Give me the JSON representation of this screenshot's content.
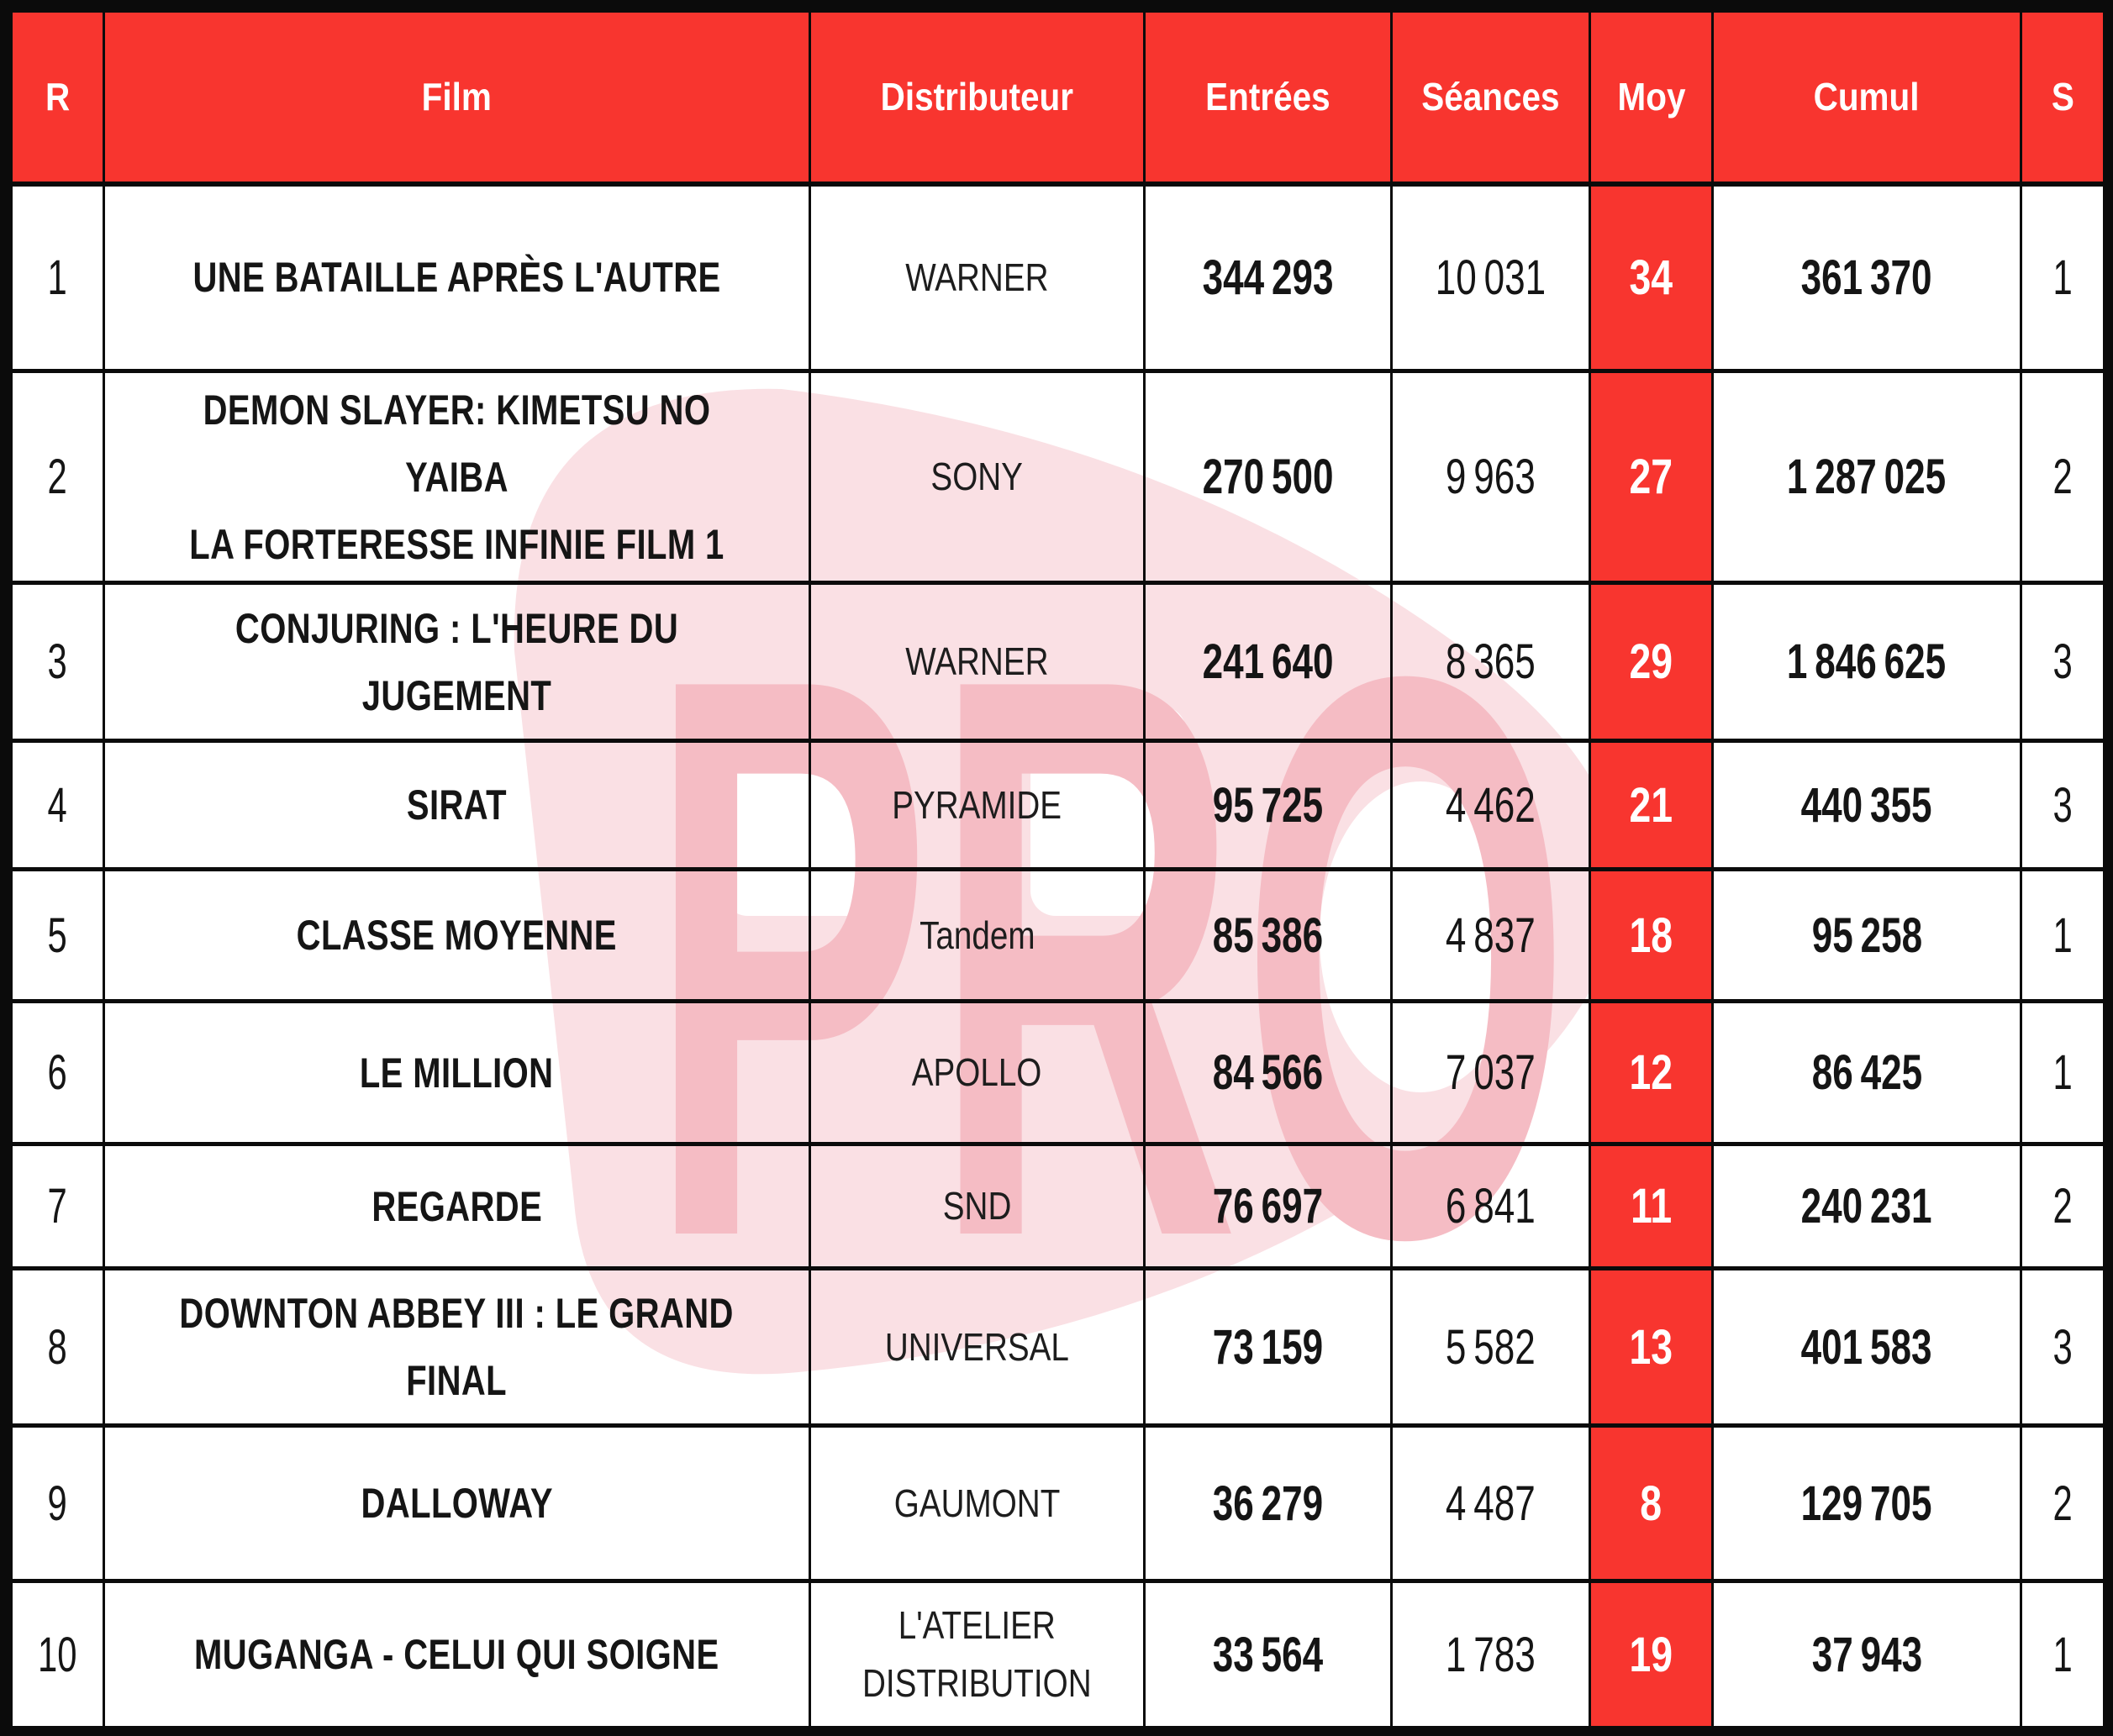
{
  "table": {
    "columns": [
      {
        "key": "rank",
        "label": "R"
      },
      {
        "key": "film",
        "label": "Film"
      },
      {
        "key": "distributor",
        "label": "Distributeur"
      },
      {
        "key": "entries",
        "label": "Entrées"
      },
      {
        "key": "screenings",
        "label": "Séances"
      },
      {
        "key": "average",
        "label": "Moy"
      },
      {
        "key": "cumulative",
        "label": "Cumul"
      },
      {
        "key": "weeks",
        "label": "S"
      }
    ],
    "rows": [
      {
        "rank": "1",
        "film": "UNE BATAILLE APRÈS L'AUTRE",
        "distributor": "WARNER",
        "entries": "344 293",
        "screenings": "10 031",
        "average": "34",
        "cumulative": "361 370",
        "weeks": "1"
      },
      {
        "rank": "2",
        "film": "DEMON SLAYER: KIMETSU NO YAIBA\nLA FORTERESSE INFINIE FILM 1",
        "distributor": "SONY",
        "entries": "270 500",
        "screenings": "9 963",
        "average": "27",
        "cumulative": "1 287 025",
        "weeks": "2"
      },
      {
        "rank": "3",
        "film": "CONJURING : L'HEURE DU\nJUGEMENT",
        "distributor": "WARNER",
        "entries": "241 640",
        "screenings": "8 365",
        "average": "29",
        "cumulative": "1 846 625",
        "weeks": "3"
      },
      {
        "rank": "4",
        "film": "SIRAT",
        "distributor": "PYRAMIDE",
        "entries": "95 725",
        "screenings": "4 462",
        "average": "21",
        "cumulative": "440 355",
        "weeks": "3"
      },
      {
        "rank": "5",
        "film": "CLASSE MOYENNE",
        "distributor": "Tandem",
        "entries": "85 386",
        "screenings": "4 837",
        "average": "18",
        "cumulative": "95 258",
        "weeks": "1"
      },
      {
        "rank": "6",
        "film": "LE MILLION",
        "distributor": "APOLLO",
        "entries": "84 566",
        "screenings": "7 037",
        "average": "12",
        "cumulative": "86 425",
        "weeks": "1"
      },
      {
        "rank": "7",
        "film": "REGARDE",
        "distributor": "SND",
        "entries": "76 697",
        "screenings": "6 841",
        "average": "11",
        "cumulative": "240 231",
        "weeks": "2"
      },
      {
        "rank": "8",
        "film": "DOWNTON ABBEY III : LE GRAND\nFINAL",
        "distributor": "UNIVERSAL",
        "entries": "73 159",
        "screenings": "5 582",
        "average": "13",
        "cumulative": "401 583",
        "weeks": "3"
      },
      {
        "rank": "9",
        "film": "DALLOWAY",
        "distributor": "GAUMONT",
        "entries": "36 279",
        "screenings": "4 487",
        "average": "8",
        "cumulative": "129 705",
        "weeks": "2"
      },
      {
        "rank": "10",
        "film": "MUGANGA - CELUI QUI SOIGNE",
        "distributor": "L'ATELIER\nDISTRIBUTION",
        "entries": "33 564",
        "screenings": "1 783",
        "average": "19",
        "cumulative": "37 943",
        "weeks": "1"
      }
    ]
  },
  "watermark": {
    "text": "PRO"
  },
  "colors": {
    "red": "#F8352F",
    "border_black": "#0B0B0B",
    "watermark_blob": "#FAE0E4",
    "watermark_text": "#F5BCC4"
  }
}
